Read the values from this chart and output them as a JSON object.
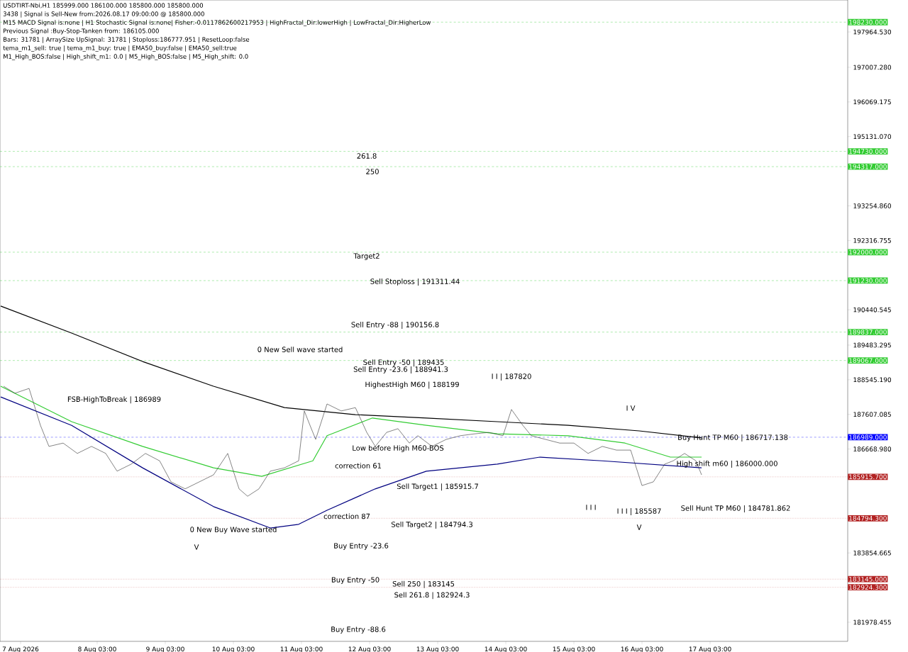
{
  "chart_data": {
    "type": "line",
    "xlim": [
      "2026-08-06T16:45",
      "2026-08-19T03:30"
    ],
    "xticks": [
      {
        "value": "2026-08-07T00:00",
        "label": "7 Aug 2026"
      },
      {
        "value": "2026-08-08T03:00",
        "label": "8 Aug 03:00"
      },
      {
        "value": "2026-08-09T03:00",
        "label": "9 Aug 03:00"
      },
      {
        "value": "2026-08-10T03:00",
        "label": "10 Aug 03:00"
      },
      {
        "value": "2026-08-11T03:00",
        "label": "11 Aug 03:00"
      },
      {
        "value": "2026-08-12T03:00",
        "label": "12 Aug 03:00"
      },
      {
        "value": "2026-08-13T03:00",
        "label": "13 Aug 03:00"
      },
      {
        "value": "2026-08-14T03:00",
        "label": "14 Aug 03:00"
      },
      {
        "value": "2026-08-15T03:00",
        "label": "15 Aug 03:00"
      },
      {
        "value": "2026-08-16T03:00",
        "label": "16 Aug 03:00"
      },
      {
        "value": "2026-08-17T03:00",
        "label": "17 Aug 03:00"
      }
    ],
    "ylim": [
      181460,
      198830
    ],
    "yticks": [
      {
        "value": 181978.455,
        "label": "181978.455"
      },
      {
        "value": 183854.665,
        "label": "183854.665"
      },
      {
        "value": 186668.98,
        "label": "186668.980"
      },
      {
        "value": 187607.085,
        "label": "187607.085"
      },
      {
        "value": 188545.19,
        "label": "188545.190"
      },
      {
        "value": 189483.295,
        "label": "189483.295"
      },
      {
        "value": 190440.545,
        "label": "190440.545"
      },
      {
        "value": 192316.755,
        "label": "192316.755"
      },
      {
        "value": 193254.86,
        "label": "193254.860"
      },
      {
        "value": 195131.07,
        "label": "195131.070"
      },
      {
        "value": 196069.175,
        "label": "196069.175"
      },
      {
        "value": 197007.28,
        "label": "197007.280"
      },
      {
        "value": 197964.53,
        "label": "197964.530"
      }
    ],
    "grid": false,
    "series": [
      {
        "color": "#333333",
        "x": [
          "2026-08-06T18:00",
          "2026-08-06T22:00",
          "2026-08-07T03:00",
          "2026-08-07T07:00",
          "2026-08-07T10:00",
          "2026-08-07T15:00",
          "2026-08-07T20:00",
          "2026-08-08T01:00",
          "2026-08-08T06:00",
          "2026-08-08T10:00",
          "2026-08-08T15:00",
          "2026-08-08T20:00",
          "2026-08-09T01:00",
          "2026-08-09T05:00",
          "2026-08-09T10:00",
          "2026-08-09T15:00",
          "2026-08-09T20:00",
          "2026-08-10T01:00",
          "2026-08-10T05:00",
          "2026-08-10T08:00",
          "2026-08-10T12:00",
          "2026-08-10T16:00",
          "2026-08-10T21:00",
          "2026-08-11T02:00",
          "2026-08-11T04:00",
          "2026-08-11T06:00",
          "2026-08-11T08:00",
          "2026-08-11T12:00",
          "2026-08-11T17:00",
          "2026-08-11T22:00",
          "2026-08-12T02:00",
          "2026-08-12T05:00",
          "2026-08-12T09:00",
          "2026-08-12T13:00",
          "2026-08-12T17:00",
          "2026-08-12T20:00",
          "2026-08-13T01:00",
          "2026-08-13T06:00",
          "2026-08-13T11:00",
          "2026-08-13T16:00",
          "2026-08-13T21:00",
          "2026-08-14T02:00",
          "2026-08-14T05:00",
          "2026-08-14T09:00",
          "2026-08-14T12:00",
          "2026-08-14T17:00",
          "2026-08-14T22:00",
          "2026-08-15T03:00",
          "2026-08-15T08:00",
          "2026-08-15T13:00",
          "2026-08-15T18:00",
          "2026-08-15T23:00",
          "2026-08-16T03:00",
          "2026-08-16T07:00",
          "2026-08-16T11:00",
          "2026-08-16T14:00",
          "2026-08-16T18:00",
          "2026-08-16T22:00",
          "2026-08-17T00:00"
        ],
        "values": [
          188370,
          188180,
          188310,
          187310,
          186740,
          186830,
          186550,
          186740,
          186550,
          186070,
          186260,
          186550,
          186350,
          185780,
          185590,
          185780,
          185970,
          186550,
          185590,
          185390,
          185590,
          186070,
          186160,
          186350,
          187700,
          187310,
          186930,
          187890,
          187700,
          187790,
          187120,
          186740,
          187120,
          187220,
          186830,
          187030,
          186740,
          186930,
          187030,
          187080,
          187120,
          187030,
          187740,
          187310,
          187030,
          186930,
          186830,
          186830,
          186550,
          186740,
          186640,
          186640,
          185680,
          185780,
          186260,
          186350,
          186550,
          186350,
          185970
        ]
      },
      {
        "color": "#000000",
        "x": [
          "2026-08-06T17:00",
          "2026-08-07T18:00",
          "2026-08-08T19:00",
          "2026-08-09T20:00",
          "2026-08-10T21:00",
          "2026-08-11T22:00",
          "2026-08-12T23:00",
          "2026-08-14T00:00",
          "2026-08-15T01:00",
          "2026-08-16T02:00",
          "2026-08-17T00:00"
        ],
        "values": [
          190540,
          189810,
          189040,
          188370,
          187790,
          187600,
          187510,
          187410,
          187310,
          187160,
          186970
        ]
      },
      {
        "color": "#33cc33",
        "x": [
          "2026-08-06T17:00",
          "2026-08-07T18:00",
          "2026-08-08T19:00",
          "2026-08-09T20:00",
          "2026-08-10T13:00",
          "2026-08-11T07:00",
          "2026-08-11T12:00",
          "2026-08-12T04:00",
          "2026-08-12T23:00",
          "2026-08-14T00:00",
          "2026-08-15T01:00",
          "2026-08-15T21:00",
          "2026-08-16T13:00",
          "2026-08-17T00:00"
        ],
        "values": [
          188370,
          187410,
          186740,
          186160,
          185930,
          186350,
          187030,
          187510,
          187310,
          187080,
          187030,
          186830,
          186450,
          186450
        ]
      },
      {
        "color": "#000080",
        "x": [
          "2026-08-06T17:00",
          "2026-08-07T18:00",
          "2026-08-08T19:00",
          "2026-08-09T20:00",
          "2026-08-10T16:00",
          "2026-08-11T02:00",
          "2026-08-11T12:00",
          "2026-08-12T05:00",
          "2026-08-12T23:00",
          "2026-08-14T00:00",
          "2026-08-14T15:00",
          "2026-08-15T13:00",
          "2026-08-17T00:00"
        ],
        "values": [
          188080,
          187310,
          186160,
          185110,
          184530,
          184630,
          185010,
          185590,
          186070,
          186260,
          186450,
          186350,
          186160
        ]
      }
    ],
    "ref_lines": [
      {
        "axis": "y",
        "value": 198230,
        "label": "198230.000",
        "color": "#33cc33",
        "line_style": "dashed"
      },
      {
        "axis": "y",
        "value": 194730,
        "label": "194730.000",
        "color": "#33cc33",
        "line_style": "dashed"
      },
      {
        "axis": "y",
        "value": 194317,
        "label": "194317.000",
        "color": "#33cc33",
        "line_style": "dashed"
      },
      {
        "axis": "y",
        "value": 192000,
        "label": "192000.000",
        "color": "#33cc33",
        "line_style": "dashed"
      },
      {
        "axis": "y",
        "value": 191230,
        "label": "191230.000",
        "color": "#33cc33",
        "line_style": "dashed"
      },
      {
        "axis": "y",
        "value": 189837,
        "label": "189837.000",
        "color": "#33cc33",
        "line_style": "dashed"
      },
      {
        "axis": "y",
        "value": 189067,
        "label": "189067.000",
        "color": "#33cc33",
        "line_style": "dashed"
      },
      {
        "axis": "y",
        "value": 186989,
        "label": "186989.000",
        "color": "#0000ff",
        "line_style": "dashed"
      },
      {
        "axis": "y",
        "value": 185915.7,
        "label": "185915.700",
        "color": "#b22222",
        "line_style": "dotted"
      },
      {
        "axis": "y",
        "value": 184794.3,
        "label": "184794.300",
        "color": "#b22222",
        "line_style": "dotted"
      },
      {
        "axis": "y",
        "value": 183145,
        "label": "183145.000",
        "color": "#b22222",
        "line_style": "dotted"
      },
      {
        "axis": "y",
        "value": 182924.3,
        "label": "182924.300",
        "color": "#b22222",
        "line_style": "dotted"
      }
    ],
    "annotations": [
      "USDTIRT-Nbi,H1  185999.000 186100.000 185800.000 185800.000",
      "3438 | Signal is Sell-New from:2026.08.17 09:00:00 @ 185800.000",
      "M15 MACD Signal is:none | H1 Stochastic Signal is:none| Fisher:-0.0117862600217953 | HighFractal_Dir:lowerHigh | LowFractal_Dir:HigherLow",
      "Previous Signal :Buy-Stop-Tanken from: 186105.000",
      "Bars: 31781 | ArraySize UpSignal: 31781 | Stoploss:186777.951 | ResetLoop:false",
      "tema_m1_sell: true | tema_m1_buy: true | EMA50_buy:false | EMA50_sell:true",
      "M1_High_BOS:false | High_shift_m1: 0.0 | M5_High_BOS:false | M5_High_shift: 0.0",
      "261.8",
      "250",
      "Target2",
      "Sell Stoploss | 191311.44",
      "Sell Entry -88 | 190156.8",
      "0 New Sell wave started",
      "Sell Entry -50 | 189435",
      "Sell Entry -23.6 | 188941.3",
      "HighestHigh   M60 | 188199",
      "I I | 187820",
      "FSB-HighToBreak | 186989",
      "Low before High   M60-BOS",
      "correction 61",
      "correction 87",
      "Sell Target1 | 185915.7",
      "Sell Target2 | 184794.3",
      "0 New Buy Wave started",
      "Buy Entry -23.6",
      "Buy Entry -50",
      "Buy Entry -88.6",
      "Sell  250 | 183145",
      "Sell  261.8 | 182924.3",
      "I V",
      "Buy Hunt TP M60 | 186717.138",
      "High shift m60 | 186000.000",
      "I I I",
      "I I I | 185587",
      "Sell Hunt TP M60 | 184781.862",
      "V",
      "V"
    ]
  }
}
